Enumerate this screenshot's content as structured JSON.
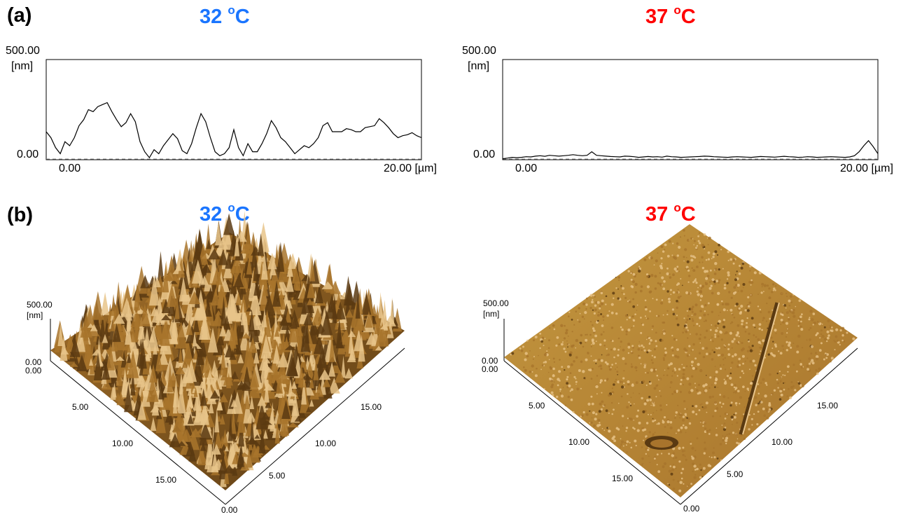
{
  "panels": {
    "a_label": "(a)",
    "b_label": "(b)"
  },
  "titles": [
    {
      "text": "32 ",
      "sup": "o",
      "unit": "C",
      "color": "#1a75ff"
    },
    {
      "text": "37 ",
      "sup": "o",
      "unit": "C",
      "color": "#ff0000"
    }
  ],
  "profiles": {
    "y_top_label": "500.00",
    "y_unit_label": "[nm]",
    "y_bottom_label": "0.00",
    "x_start_label": "0.00",
    "x_end_label": "20.00 [µm]"
  },
  "surfaces": {
    "z_top_label": "500.00",
    "z_unit_label": "[nm]",
    "z_bottom_label": "0.00",
    "left_axis_ticks": [
      "0.00",
      "5.00",
      "10.00",
      "15.00"
    ],
    "right_axis_ticks": [
      "0.00",
      "5.00",
      "10.00",
      "15.00"
    ],
    "colors": {
      "dark": "#5a3a12",
      "mid": "#a8742c",
      "light": "#e8c48a",
      "flat": "#c4973f"
    }
  },
  "chart_data": [
    {
      "type": "line",
      "title": "32 oC",
      "xlabel": "[µm]",
      "ylabel": "[nm]",
      "xlim": [
        0,
        20
      ],
      "ylim": [
        0,
        500
      ],
      "x": [
        0.0,
        0.25,
        0.5,
        0.75,
        1.0,
        1.25,
        1.5,
        1.75,
        2.0,
        2.25,
        2.5,
        2.75,
        3.0,
        3.25,
        3.5,
        3.75,
        4.0,
        4.25,
        4.5,
        4.75,
        5.0,
        5.25,
        5.5,
        5.75,
        6.0,
        6.25,
        6.5,
        6.75,
        7.0,
        7.25,
        7.5,
        7.75,
        8.0,
        8.25,
        8.5,
        8.75,
        9.0,
        9.25,
        9.5,
        9.75,
        10.0,
        10.25,
        10.5,
        10.75,
        11.0,
        11.25,
        11.5,
        11.75,
        12.0,
        12.25,
        12.5,
        12.75,
        13.0,
        13.25,
        13.5,
        13.75,
        14.0,
        14.25,
        14.5,
        14.75,
        15.0,
        15.25,
        15.5,
        15.75,
        16.0,
        16.25,
        16.5,
        16.75,
        17.0,
        17.25,
        17.5,
        17.75,
        18.0,
        18.25,
        18.5,
        18.75,
        19.0,
        19.25,
        19.5,
        19.75,
        20.0
      ],
      "values": [
        140,
        110,
        60,
        30,
        90,
        70,
        110,
        170,
        200,
        250,
        240,
        265,
        275,
        285,
        240,
        200,
        165,
        185,
        230,
        190,
        90,
        40,
        10,
        50,
        30,
        70,
        100,
        130,
        105,
        45,
        30,
        80,
        160,
        230,
        190,
        110,
        40,
        20,
        30,
        60,
        150,
        60,
        20,
        80,
        40,
        40,
        80,
        130,
        195,
        160,
        110,
        90,
        60,
        30,
        50,
        70,
        60,
        80,
        110,
        170,
        185,
        140,
        140,
        140,
        155,
        150,
        140,
        140,
        160,
        165,
        170,
        205,
        185,
        160,
        130,
        110,
        120,
        125,
        135,
        120,
        110
      ],
      "series": [
        {
          "name": "",
          "color": "#000000"
        }
      ]
    },
    {
      "type": "line",
      "title": "37 oC",
      "xlabel": "[µm]",
      "ylabel": "[nm]",
      "xlim": [
        0,
        20
      ],
      "ylim": [
        0,
        500
      ],
      "x": [
        0.0,
        0.25,
        0.5,
        0.75,
        1.0,
        1.25,
        1.5,
        1.75,
        2.0,
        2.25,
        2.5,
        2.75,
        3.0,
        3.25,
        3.5,
        3.75,
        4.0,
        4.25,
        4.5,
        4.75,
        5.0,
        5.25,
        5.5,
        5.75,
        6.0,
        6.25,
        6.5,
        6.75,
        7.0,
        7.25,
        7.5,
        7.75,
        8.0,
        8.25,
        8.5,
        8.75,
        9.0,
        9.25,
        9.5,
        9.75,
        10.0,
        10.25,
        10.5,
        10.75,
        11.0,
        11.25,
        11.5,
        11.75,
        12.0,
        12.25,
        12.5,
        12.75,
        13.0,
        13.25,
        13.5,
        13.75,
        14.0,
        14.25,
        14.5,
        14.75,
        15.0,
        15.25,
        15.5,
        15.75,
        16.0,
        16.25,
        16.5,
        16.75,
        17.0,
        17.25,
        17.5,
        17.75,
        18.0,
        18.25,
        18.5,
        18.75,
        19.0,
        19.25,
        19.5,
        19.75,
        20.0
      ],
      "values": [
        5,
        8,
        12,
        10,
        12,
        15,
        14,
        18,
        20,
        17,
        22,
        20,
        18,
        20,
        22,
        25,
        22,
        20,
        22,
        40,
        22,
        20,
        18,
        16,
        15,
        14,
        18,
        17,
        15,
        12,
        14,
        16,
        14,
        15,
        13,
        18,
        15,
        14,
        12,
        13,
        14,
        15,
        16,
        18,
        17,
        15,
        14,
        13,
        12,
        14,
        15,
        14,
        13,
        12,
        14,
        16,
        15,
        14,
        13,
        15,
        17,
        15,
        14,
        12,
        13,
        15,
        14,
        12,
        13,
        14,
        15,
        14,
        13,
        12,
        14,
        20,
        40,
        70,
        95,
        65,
        30
      ],
      "series": [
        {
          "name": "",
          "color": "#000000"
        }
      ]
    }
  ]
}
